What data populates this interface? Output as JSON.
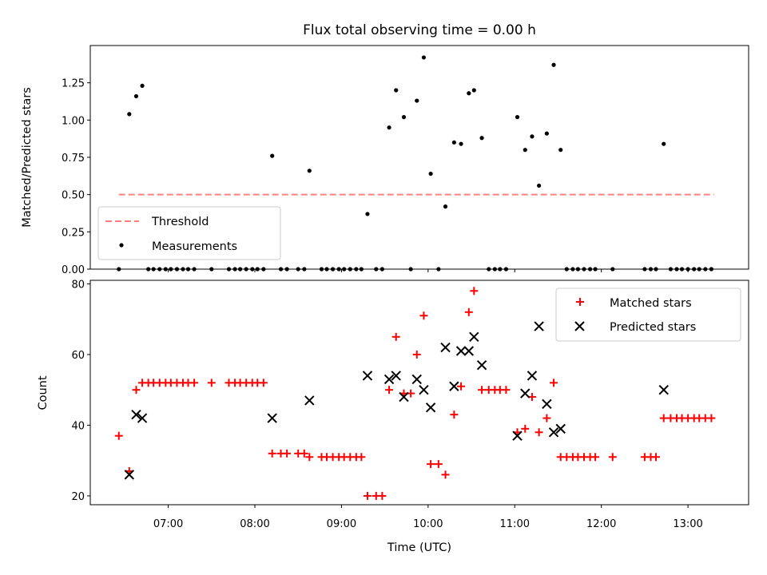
{
  "chart_data": [
    {
      "type": "scatter",
      "title": "Flux total observing time = 0.00 h",
      "xlabel": "",
      "ylabel": "Matched/Predicted stars",
      "xlim": [
        6.1,
        13.7
      ],
      "ylim": [
        0,
        1.5
      ],
      "yticks": [
        "0.00",
        "0.25",
        "0.50",
        "0.75",
        "1.00",
        "1.25"
      ],
      "grid": false,
      "legend_position": "lower-left",
      "threshold": {
        "name": "Threshold",
        "value": 0.5,
        "x_range": [
          6.43,
          13.3
        ],
        "color": "#ff8080"
      },
      "series": [
        {
          "name": "Measurements",
          "color": "#000000",
          "points": [
            [
              6.43,
              0
            ],
            [
              6.55,
              1.04
            ],
            [
              6.63,
              1.16
            ],
            [
              6.7,
              1.23
            ],
            [
              6.77,
              0
            ],
            [
              6.83,
              0
            ],
            [
              6.9,
              0
            ],
            [
              6.97,
              0
            ],
            [
              7.03,
              0
            ],
            [
              7.1,
              0
            ],
            [
              7.17,
              0
            ],
            [
              7.23,
              0
            ],
            [
              7.3,
              0
            ],
            [
              7.5,
              0
            ],
            [
              7.7,
              0
            ],
            [
              7.77,
              0
            ],
            [
              7.83,
              0
            ],
            [
              7.9,
              0
            ],
            [
              7.97,
              0
            ],
            [
              8.03,
              0
            ],
            [
              8.1,
              0
            ],
            [
              8.2,
              0.76
            ],
            [
              8.3,
              0
            ],
            [
              8.37,
              0
            ],
            [
              8.5,
              0
            ],
            [
              8.57,
              0
            ],
            [
              8.63,
              0.66
            ],
            [
              8.77,
              0
            ],
            [
              8.83,
              0
            ],
            [
              8.9,
              0
            ],
            [
              8.97,
              0
            ],
            [
              9.03,
              0
            ],
            [
              9.1,
              0
            ],
            [
              9.17,
              0
            ],
            [
              9.23,
              0
            ],
            [
              9.3,
              0.37
            ],
            [
              9.4,
              0
            ],
            [
              9.47,
              0
            ],
            [
              9.55,
              0.95
            ],
            [
              9.63,
              1.2
            ],
            [
              9.72,
              1.02
            ],
            [
              9.8,
              0
            ],
            [
              9.87,
              1.13
            ],
            [
              9.95,
              1.42
            ],
            [
              10.03,
              0.64
            ],
            [
              10.12,
              0
            ],
            [
              10.2,
              0.42
            ],
            [
              10.3,
              0.85
            ],
            [
              10.38,
              0.84
            ],
            [
              10.47,
              1.18
            ],
            [
              10.53,
              1.2
            ],
            [
              10.62,
              0.88
            ],
            [
              10.7,
              0
            ],
            [
              10.77,
              0
            ],
            [
              10.83,
              0
            ],
            [
              10.9,
              0
            ],
            [
              11.03,
              1.02
            ],
            [
              11.12,
              0.8
            ],
            [
              11.2,
              0.89
            ],
            [
              11.28,
              0.56
            ],
            [
              11.37,
              0.91
            ],
            [
              11.45,
              1.37
            ],
            [
              11.53,
              0.8
            ],
            [
              11.6,
              0
            ],
            [
              11.67,
              0
            ],
            [
              11.73,
              0
            ],
            [
              11.8,
              0
            ],
            [
              11.87,
              0
            ],
            [
              11.93,
              0
            ],
            [
              12.13,
              0
            ],
            [
              12.5,
              0
            ],
            [
              12.57,
              0
            ],
            [
              12.63,
              0
            ],
            [
              12.72,
              0.84
            ],
            [
              12.8,
              0
            ],
            [
              12.87,
              0
            ],
            [
              12.93,
              0
            ],
            [
              13.0,
              0
            ],
            [
              13.07,
              0
            ],
            [
              13.13,
              0
            ],
            [
              13.2,
              0
            ],
            [
              13.27,
              0
            ]
          ]
        }
      ]
    },
    {
      "type": "scatter",
      "title": "",
      "xlabel": "Time (UTC)",
      "ylabel": "Count",
      "xlim": [
        6.1,
        13.7
      ],
      "ylim": [
        17.5,
        81
      ],
      "xticks": [
        "07:00",
        "08:00",
        "09:00",
        "10:00",
        "11:00",
        "12:00",
        "13:00"
      ],
      "yticks": [
        "20",
        "40",
        "60",
        "80"
      ],
      "grid": false,
      "legend_position": "top-right",
      "series": [
        {
          "name": "Matched stars",
          "marker": "plus",
          "color": "#ff0000",
          "points": [
            [
              6.43,
              37
            ],
            [
              6.55,
              27
            ],
            [
              6.63,
              50
            ],
            [
              6.7,
              52
            ],
            [
              6.77,
              52
            ],
            [
              6.83,
              52
            ],
            [
              6.9,
              52
            ],
            [
              6.97,
              52
            ],
            [
              7.03,
              52
            ],
            [
              7.1,
              52
            ],
            [
              7.17,
              52
            ],
            [
              7.23,
              52
            ],
            [
              7.3,
              52
            ],
            [
              7.5,
              52
            ],
            [
              7.7,
              52
            ],
            [
              7.77,
              52
            ],
            [
              7.83,
              52
            ],
            [
              7.9,
              52
            ],
            [
              7.97,
              52
            ],
            [
              8.03,
              52
            ],
            [
              8.1,
              52
            ],
            [
              8.2,
              32
            ],
            [
              8.3,
              32
            ],
            [
              8.37,
              32
            ],
            [
              8.5,
              32
            ],
            [
              8.57,
              32
            ],
            [
              8.63,
              31
            ],
            [
              8.77,
              31
            ],
            [
              8.83,
              31
            ],
            [
              8.9,
              31
            ],
            [
              8.97,
              31
            ],
            [
              9.03,
              31
            ],
            [
              9.1,
              31
            ],
            [
              9.17,
              31
            ],
            [
              9.23,
              31
            ],
            [
              9.3,
              20
            ],
            [
              9.4,
              20
            ],
            [
              9.47,
              20
            ],
            [
              9.55,
              50
            ],
            [
              9.63,
              65
            ],
            [
              9.72,
              49
            ],
            [
              9.8,
              49
            ],
            [
              9.87,
              60
            ],
            [
              9.95,
              71
            ],
            [
              10.03,
              29
            ],
            [
              10.12,
              29
            ],
            [
              10.2,
              26
            ],
            [
              10.3,
              43
            ],
            [
              10.38,
              51
            ],
            [
              10.47,
              72
            ],
            [
              10.53,
              78
            ],
            [
              10.62,
              50
            ],
            [
              10.7,
              50
            ],
            [
              10.77,
              50
            ],
            [
              10.83,
              50
            ],
            [
              10.9,
              50
            ],
            [
              11.03,
              38
            ],
            [
              11.12,
              39
            ],
            [
              11.2,
              48
            ],
            [
              11.28,
              38
            ],
            [
              11.37,
              42
            ],
            [
              11.45,
              52
            ],
            [
              11.53,
              31
            ],
            [
              11.6,
              31
            ],
            [
              11.67,
              31
            ],
            [
              11.73,
              31
            ],
            [
              11.8,
              31
            ],
            [
              11.87,
              31
            ],
            [
              11.93,
              31
            ],
            [
              12.13,
              31
            ],
            [
              12.5,
              31
            ],
            [
              12.57,
              31
            ],
            [
              12.63,
              31
            ],
            [
              12.72,
              42
            ],
            [
              12.8,
              42
            ],
            [
              12.87,
              42
            ],
            [
              12.93,
              42
            ],
            [
              13.0,
              42
            ],
            [
              13.07,
              42
            ],
            [
              13.13,
              42
            ],
            [
              13.2,
              42
            ],
            [
              13.27,
              42
            ]
          ]
        },
        {
          "name": "Predicted stars",
          "marker": "x",
          "color": "#000000",
          "points": [
            [
              6.55,
              26
            ],
            [
              6.63,
              43
            ],
            [
              6.7,
              42
            ],
            [
              8.2,
              42
            ],
            [
              8.63,
              47
            ],
            [
              9.3,
              54
            ],
            [
              9.55,
              53
            ],
            [
              9.63,
              54
            ],
            [
              9.72,
              48
            ],
            [
              9.87,
              53
            ],
            [
              9.95,
              50
            ],
            [
              10.03,
              45
            ],
            [
              10.2,
              62
            ],
            [
              10.3,
              51
            ],
            [
              10.38,
              61
            ],
            [
              10.47,
              61
            ],
            [
              10.53,
              65
            ],
            [
              10.62,
              57
            ],
            [
              11.03,
              37
            ],
            [
              11.12,
              49
            ],
            [
              11.2,
              54
            ],
            [
              11.28,
              68
            ],
            [
              11.37,
              46
            ],
            [
              11.45,
              38
            ],
            [
              11.53,
              39
            ],
            [
              12.72,
              50
            ]
          ]
        }
      ]
    }
  ]
}
